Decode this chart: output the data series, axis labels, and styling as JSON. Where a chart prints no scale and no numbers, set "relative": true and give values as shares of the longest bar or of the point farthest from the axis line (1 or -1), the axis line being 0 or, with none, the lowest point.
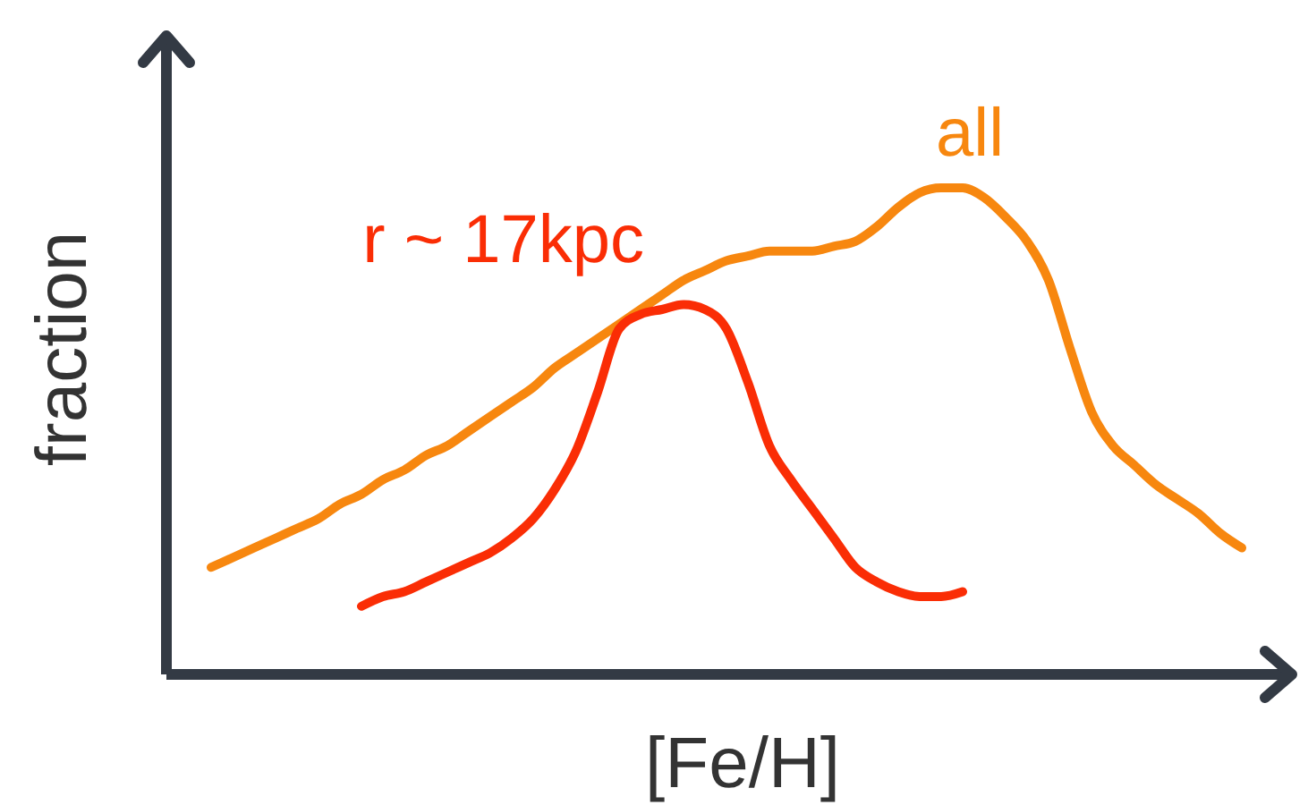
{
  "chart_data": {
    "type": "line",
    "relative": true,
    "xlabel": "[Fe/H]",
    "ylabel": "fraction",
    "marker": "none",
    "line_style": "solid",
    "categories": [
      null,
      null,
      null,
      null,
      null,
      null,
      null,
      null,
      null,
      null,
      null,
      null,
      null,
      null,
      null,
      null,
      null,
      null,
      null,
      null,
      null,
      null,
      null,
      null,
      null,
      null,
      null,
      null,
      null,
      null,
      null,
      null,
      null,
      null,
      null,
      null,
      null,
      null,
      null,
      null,
      null,
      null,
      null,
      null,
      null,
      null,
      null,
      null,
      null
    ],
    "series": [
      {
        "name": "all",
        "color": "#f7870f",
        "values": [
          0.22,
          0.24,
          0.26,
          0.28,
          0.3,
          0.32,
          0.35,
          0.37,
          0.4,
          0.42,
          0.45,
          0.47,
          0.5,
          0.53,
          0.56,
          0.59,
          0.63,
          0.66,
          0.69,
          0.72,
          0.75,
          0.78,
          0.81,
          0.83,
          0.85,
          0.86,
          0.87,
          0.87,
          0.87,
          0.88,
          0.89,
          0.92,
          0.96,
          0.99,
          1.0,
          1.0,
          0.98,
          0.94,
          0.89,
          0.81,
          0.67,
          0.54,
          0.47,
          0.43,
          0.39,
          0.36,
          0.33,
          0.29,
          0.26
        ]
      },
      {
        "name": "r ~ 17kpc",
        "color": "#fa2d05",
        "values": [
          null,
          null,
          null,
          null,
          null,
          null,
          null,
          0.14,
          0.16,
          0.17,
          0.19,
          0.21,
          0.23,
          0.25,
          0.28,
          0.32,
          0.38,
          0.46,
          0.58,
          0.71,
          0.74,
          0.75,
          0.76,
          0.75,
          0.71,
          0.6,
          0.47,
          0.4,
          0.34,
          0.28,
          0.22,
          0.19,
          0.17,
          0.16,
          0.16,
          0.17,
          null,
          null,
          null,
          null,
          null,
          null,
          null,
          null,
          null,
          null,
          null,
          null,
          null
        ]
      }
    ]
  }
}
